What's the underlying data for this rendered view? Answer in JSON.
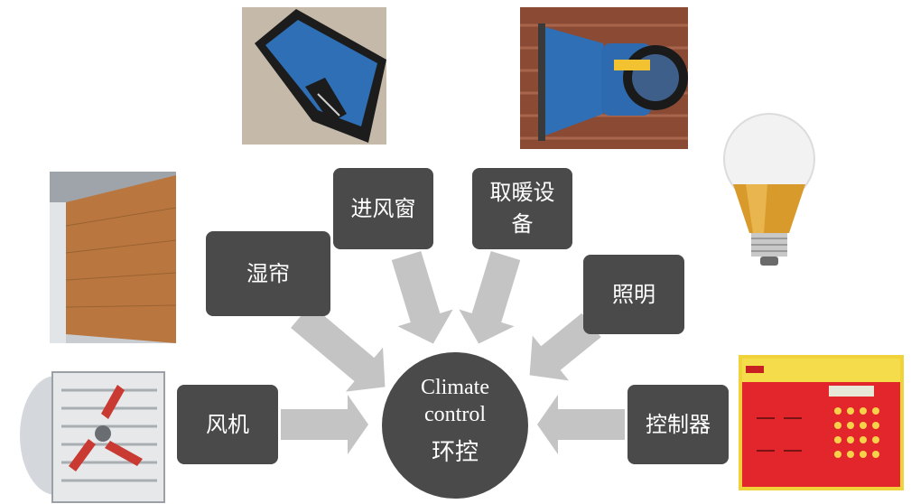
{
  "hub": {
    "title": "Climate control",
    "title_line1": "Climate",
    "title_line2": "control",
    "subtitle": "环控"
  },
  "nodes": {
    "wet_curtain": "湿帘",
    "air_inlet": "进风窗",
    "heating": "取暖设备",
    "heating_line1": "取暖设",
    "heating_line2": "备",
    "lighting": "照明",
    "fan": "风机",
    "controller": "控制器"
  },
  "colors": {
    "box": "#4a4a4a",
    "arrow": "#c4c4c4",
    "text": "#ffffff"
  }
}
